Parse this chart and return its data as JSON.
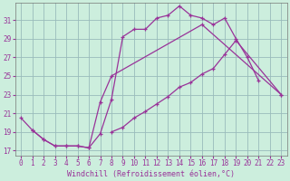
{
  "xlabel": "Windchill (Refroidissement éolien,°C)",
  "background_color": "#cceedd",
  "grid_color": "#99bbbb",
  "line_color": "#993399",
  "ylim": [
    16.5,
    32.8
  ],
  "xlim": [
    -0.5,
    23.5
  ],
  "yticks": [
    17,
    19,
    21,
    23,
    25,
    27,
    29,
    31
  ],
  "xticks": [
    0,
    1,
    2,
    3,
    4,
    5,
    6,
    7,
    8,
    9,
    10,
    11,
    12,
    13,
    14,
    15,
    16,
    17,
    18,
    19,
    20,
    21,
    22,
    23
  ],
  "line1_x": [
    0,
    1,
    2,
    3,
    4,
    5,
    6,
    7,
    8,
    9,
    10,
    11,
    12,
    13,
    14,
    15,
    16,
    17,
    18,
    19,
    20,
    21
  ],
  "line1_y": [
    20.5,
    19.2,
    18.2,
    17.5,
    17.5,
    17.5,
    17.3,
    18.8,
    22.5,
    29.2,
    30.0,
    30.0,
    31.2,
    31.5,
    32.5,
    31.5,
    31.2,
    30.5,
    31.2,
    29.0,
    27.0,
    24.5
  ],
  "line2_x": [
    1,
    2,
    3,
    4,
    5,
    6,
    7,
    8,
    16,
    23
  ],
  "line2_y": [
    19.2,
    18.2,
    17.5,
    17.5,
    17.5,
    17.3,
    22.2,
    25.0,
    30.5,
    23.0
  ],
  "line3_x": [
    8,
    9,
    10,
    11,
    12,
    13,
    14,
    15,
    16,
    17,
    18,
    19,
    23
  ],
  "line3_y": [
    19.0,
    19.5,
    20.5,
    21.2,
    22.0,
    22.8,
    23.8,
    24.3,
    25.2,
    25.8,
    27.3,
    28.8,
    23.0
  ]
}
